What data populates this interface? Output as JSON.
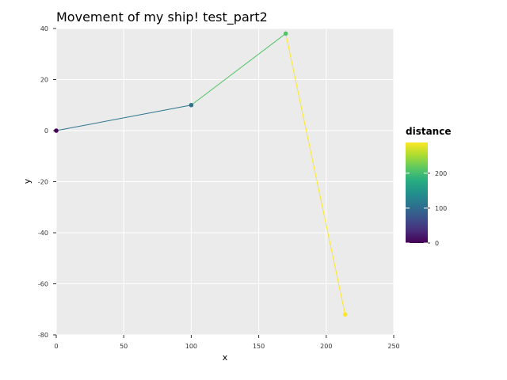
{
  "chart_data": {
    "type": "line",
    "title": "Movement of my ship! test_part2",
    "xlabel": "x",
    "ylabel": "y",
    "xlim": [
      0,
      250
    ],
    "ylim": [
      -80,
      40
    ],
    "xticks": [
      0,
      50,
      100,
      150,
      200,
      250
    ],
    "yticks": [
      -80,
      -60,
      -40,
      -20,
      0,
      20,
      40
    ],
    "grid": true,
    "points": [
      {
        "x": 0,
        "y": 0,
        "distance": 0
      },
      {
        "x": 100,
        "y": 10,
        "distance": 110
      },
      {
        "x": 170,
        "y": 38,
        "distance": 208
      },
      {
        "x": 214,
        "y": -72,
        "distance": 288
      }
    ],
    "colorbar": {
      "title": "distance",
      "range": [
        0,
        288
      ],
      "ticks": [
        0,
        100,
        200
      ],
      "colormap": "viridis"
    },
    "legend_position": "right"
  }
}
